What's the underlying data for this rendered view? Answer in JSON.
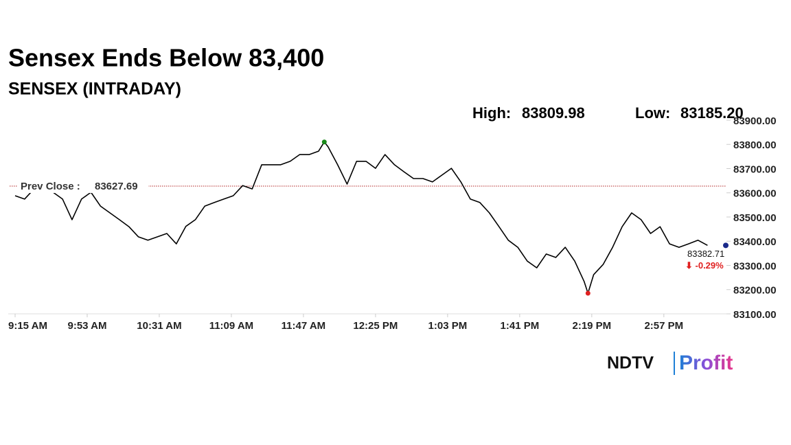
{
  "chart_data": {
    "type": "line",
    "title": "Sensex Ends Below 83,400",
    "subtitle": "SENSEX (INTRADAY)",
    "high": {
      "label": "High:",
      "value": 83809.98
    },
    "low": {
      "label": "Low:",
      "value": {
        "value": 83185.2,
        "label": "83185.20"
      }
    },
    "prev_close": {
      "label": "Prev Close :",
      "value": 83627.69
    },
    "last": {
      "value": 83382.71,
      "change": {
        "value": -0.29,
        "label": "⬇ -0.29%"
      }
    },
    "color": "#000000",
    "x": [
      "9:15 AM",
      "9:20 AM",
      "9:25 AM",
      "9:30 AM",
      "9:35 AM",
      "9:40 AM",
      "9:45 AM",
      "9:50 AM",
      "9:55 AM",
      "10:00 AM",
      "10:05 AM",
      "10:10 AM",
      "10:15 AM",
      "10:20 AM",
      "10:25 AM",
      "10:30 AM",
      "10:35 AM",
      "10:40 AM",
      "10:45 AM",
      "10:50 AM",
      "10:55 AM",
      "11:00 AM",
      "11:05 AM",
      "11:10 AM",
      "11:15 AM",
      "11:20 AM",
      "11:25 AM",
      "11:30 AM",
      "11:35 AM",
      "11:40 AM",
      "11:45 AM",
      "11:50 AM",
      "11:55 AM",
      "11:58 AM",
      "12:00 PM",
      "12:05 PM",
      "12:10 PM",
      "12:15 PM",
      "12:20 PM",
      "12:25 PM",
      "12:30 PM",
      "12:35 PM",
      "12:40 PM",
      "12:45 PM",
      "12:50 PM",
      "12:55 PM",
      "1:00 PM",
      "1:05 PM",
      "1:10 PM",
      "1:15 PM",
      "1:20 PM",
      "1:25 PM",
      "1:30 PM",
      "1:35 PM",
      "1:40 PM",
      "1:45 PM",
      "1:50 PM",
      "1:55 PM",
      "2:00 PM",
      "2:05 PM",
      "2:10 PM",
      "2:15 PM",
      "2:17 PM",
      "2:20 PM",
      "2:25 PM",
      "2:30 PM",
      "2:35 PM",
      "2:40 PM",
      "2:45 PM",
      "2:50 PM",
      "2:55 PM",
      "3:00 PM",
      "3:05 PM",
      "3:10 PM",
      "3:15 PM",
      "3:20 PM"
    ],
    "values": [
      83588,
      83574,
      83616,
      83645,
      83602,
      83574,
      83489,
      83574,
      83602,
      83545,
      83517,
      83489,
      83460,
      83418,
      83404,
      83418,
      83432,
      83389,
      83461,
      83489,
      83545,
      83560,
      83574,
      83588,
      83630,
      83616,
      83716,
      83716,
      83716,
      83730,
      83758,
      83758,
      83772,
      83809.98,
      83790,
      83716,
      83636,
      83730,
      83730,
      83701,
      83758,
      83716,
      83687,
      83659,
      83659,
      83645,
      83673,
      83701,
      83645,
      83574,
      83560,
      83517,
      83461,
      83404,
      83375,
      83318,
      83290,
      83347,
      83333,
      83375,
      83318,
      83233,
      83185.2,
      83262,
      83304,
      83375,
      83460,
      83517,
      83489,
      83432,
      83460,
      83389,
      83375,
      83389,
      83404,
      83382.71
    ],
    "xlim": [
      "9:15 AM",
      "3:30 PM"
    ],
    "xticks": [
      "9:15 AM",
      "9:53 AM",
      "10:31 AM",
      "11:09 AM",
      "11:47 AM",
      "12:25 PM",
      "1:03 PM",
      "1:41 PM",
      "2:19 PM",
      "2:57 PM"
    ],
    "ylim": [
      83100,
      83900
    ],
    "yticks": [
      {
        "value": 83100,
        "label": "83100.00"
      },
      {
        "value": 83200,
        "label": "83200.00"
      },
      {
        "value": 83300,
        "label": "83300.00"
      },
      {
        "value": 83400,
        "label": "83400.00"
      },
      {
        "value": 83500,
        "label": "83500.00"
      },
      {
        "value": 83600,
        "label": "83600.00"
      },
      {
        "value": 83700,
        "label": "83700.00"
      },
      {
        "value": 83800,
        "label": "83800.00"
      },
      {
        "value": 83900,
        "label": "83900.00"
      }
    ],
    "brand": {
      "left": "NDTV",
      "right": "Profit"
    }
  }
}
